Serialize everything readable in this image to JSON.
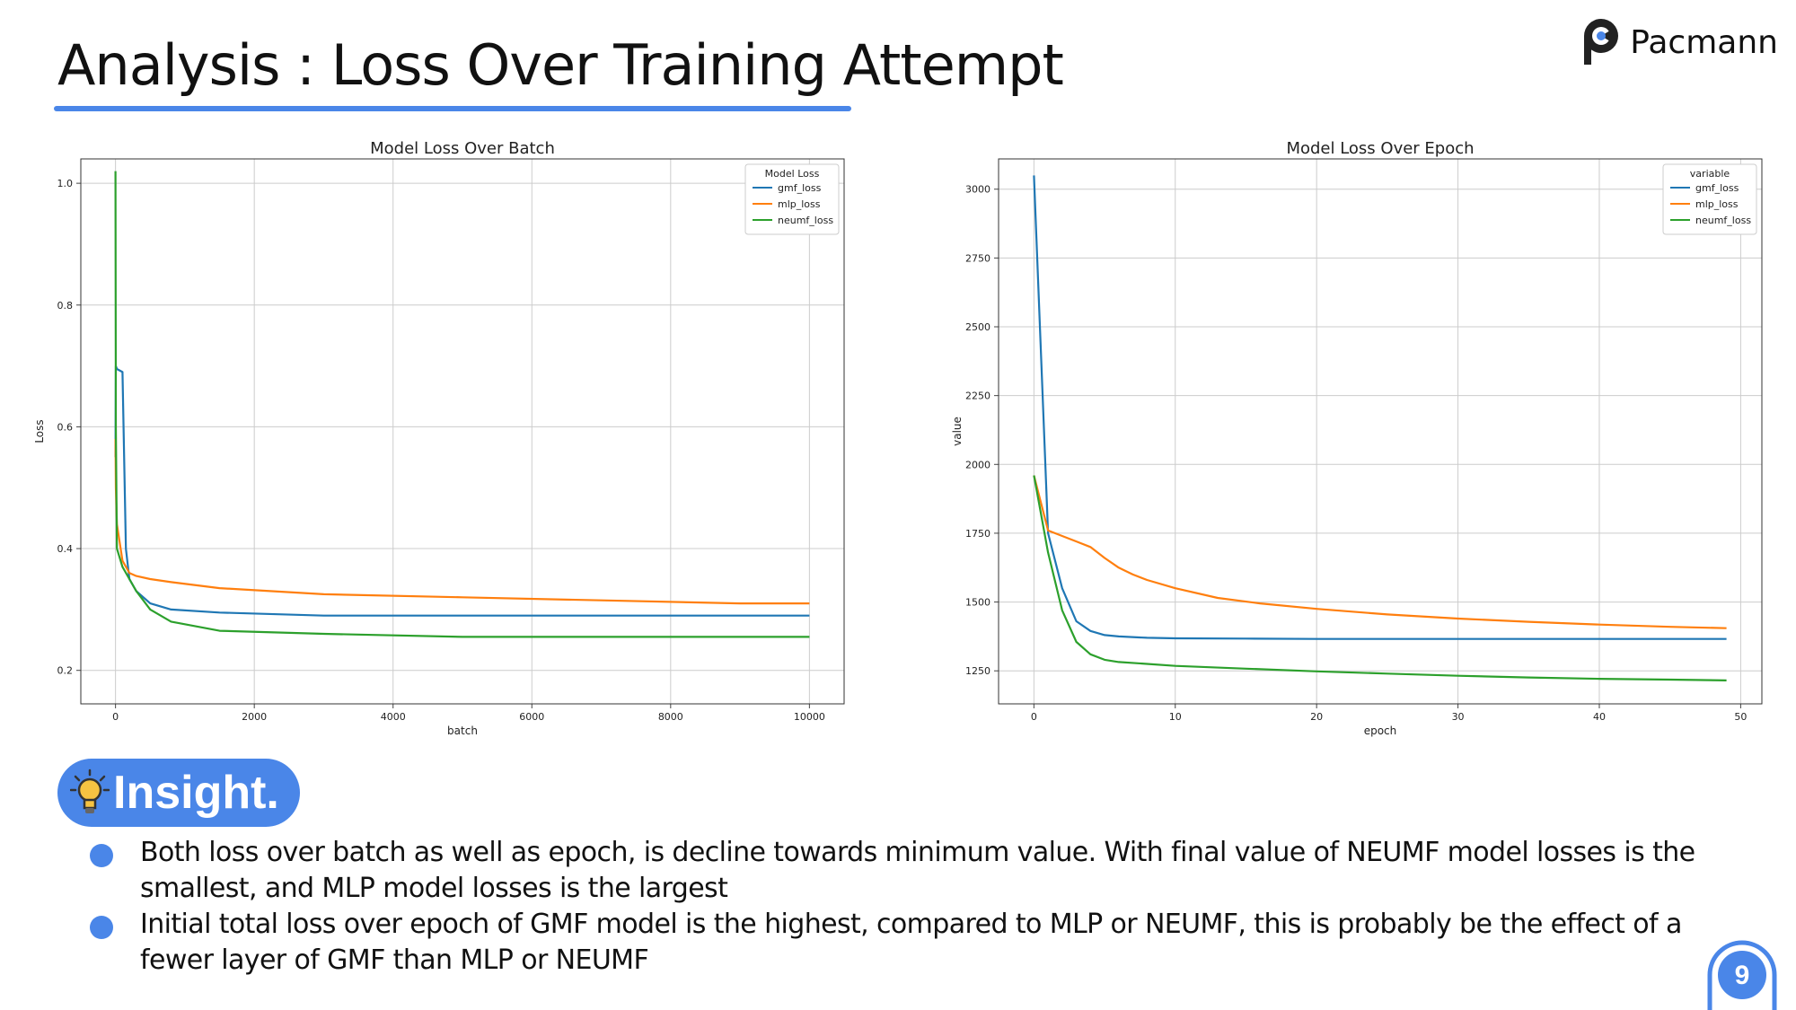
{
  "slide": {
    "title": "Analysis : Loss Over Training Attempt",
    "brand": "Pacmann",
    "page_number": "9",
    "accent_color": "#4a86e8"
  },
  "insight": {
    "label": "Insight.",
    "icon": "lightbulb-icon",
    "bullets": [
      "Both loss over batch as well as epoch, is decline towards minimum value. With final value of NEUMF model losses is the smallest, and MLP model losses is the largest",
      "Initial total loss over epoch of GMF model is the highest, compared to MLP or NEUMF, this is probably be the effect of a fewer layer of GMF than MLP or NEUMF"
    ]
  },
  "chart_data": [
    {
      "type": "line",
      "title": "Model Loss Over Batch",
      "xlabel": "batch",
      "ylabel": "Loss",
      "xlim": [
        -500,
        10500
      ],
      "ylim": [
        0.145,
        1.04
      ],
      "xticks": [
        0,
        2000,
        4000,
        6000,
        8000,
        10000
      ],
      "yticks": [
        0.2,
        0.4,
        0.6,
        0.8,
        1.0
      ],
      "grid": true,
      "legend": {
        "title": "Model Loss",
        "placement": "top-right"
      },
      "series": [
        {
          "name": "gmf_loss",
          "color": "#1f77b4",
          "x": [
            0,
            5,
            20,
            100,
            150,
            200,
            300,
            500,
            800,
            1500,
            3000,
            5000,
            7000,
            9000,
            10000
          ],
          "y": [
            0.55,
            0.7,
            0.695,
            0.69,
            0.4,
            0.35,
            0.33,
            0.31,
            0.3,
            0.295,
            0.29,
            0.29,
            0.29,
            0.29,
            0.29
          ]
        },
        {
          "name": "mlp_loss",
          "color": "#ff7f0e",
          "x": [
            0,
            5,
            20,
            100,
            200,
            300,
            500,
            800,
            1500,
            3000,
            5000,
            7000,
            9000,
            10000
          ],
          "y": [
            0.58,
            0.5,
            0.44,
            0.38,
            0.36,
            0.355,
            0.35,
            0.345,
            0.335,
            0.325,
            0.32,
            0.315,
            0.31,
            0.31
          ]
        },
        {
          "name": "neumf_loss",
          "color": "#2ca02c",
          "x": [
            0,
            5,
            20,
            100,
            200,
            300,
            500,
            800,
            1500,
            3000,
            5000,
            7000,
            9000,
            10000
          ],
          "y": [
            1.02,
            0.6,
            0.4,
            0.37,
            0.35,
            0.33,
            0.3,
            0.28,
            0.265,
            0.26,
            0.255,
            0.255,
            0.255,
            0.255
          ]
        }
      ]
    },
    {
      "type": "line",
      "title": "Model Loss Over Epoch",
      "xlabel": "epoch",
      "ylabel": "value",
      "xlim": [
        -2.5,
        51.5
      ],
      "ylim": [
        1130,
        3110
      ],
      "xticks": [
        0,
        10,
        20,
        30,
        40,
        50
      ],
      "yticks": [
        1250,
        1500,
        1750,
        2000,
        2250,
        2500,
        2750,
        3000
      ],
      "grid": true,
      "legend": {
        "title": "variable",
        "placement": "top-right"
      },
      "series": [
        {
          "name": "gmf_loss",
          "color": "#1f77b4",
          "x": [
            0,
            1,
            2,
            3,
            4,
            5,
            6,
            8,
            10,
            15,
            20,
            30,
            40,
            49
          ],
          "y": [
            3050,
            1750,
            1550,
            1430,
            1395,
            1380,
            1375,
            1370,
            1368,
            1367,
            1366,
            1366,
            1366,
            1366
          ]
        },
        {
          "name": "mlp_loss",
          "color": "#ff7f0e",
          "x": [
            0,
            1,
            2,
            3,
            4,
            5,
            6,
            7,
            8,
            10,
            13,
            16,
            20,
            25,
            30,
            35,
            40,
            45,
            49
          ],
          "y": [
            1960,
            1760,
            1740,
            1720,
            1700,
            1660,
            1625,
            1600,
            1580,
            1550,
            1515,
            1495,
            1475,
            1455,
            1440,
            1428,
            1418,
            1410,
            1405
          ]
        },
        {
          "name": "neumf_loss",
          "color": "#2ca02c",
          "x": [
            0,
            1,
            2,
            3,
            4,
            5,
            6,
            8,
            10,
            15,
            20,
            25,
            30,
            35,
            40,
            45,
            49
          ],
          "y": [
            1960,
            1680,
            1470,
            1355,
            1310,
            1290,
            1282,
            1275,
            1268,
            1258,
            1248,
            1240,
            1232,
            1226,
            1221,
            1218,
            1215
          ]
        }
      ]
    }
  ]
}
